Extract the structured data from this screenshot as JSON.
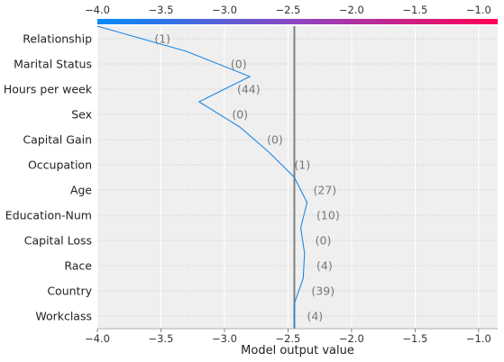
{
  "chart_data": {
    "type": "line",
    "xlabel": "Model output value",
    "xlim": [
      -4.0,
      -0.85
    ],
    "xticks": [
      -4.0,
      -3.5,
      -3.0,
      -2.5,
      -2.0,
      -1.5,
      -1.0
    ],
    "xtick_labels": [
      "−4.0",
      "−3.5",
      "−3.0",
      "−2.5",
      "−2.0",
      "−1.5",
      "−1.0"
    ],
    "grid": true,
    "base_value": -2.45,
    "colorbar": {
      "from_color": "#008bfb",
      "mid_color": "#8e44c2",
      "to_color": "#ff0051"
    },
    "line_color": "#1e88e5",
    "base_line_color": "#808080",
    "features": [
      "Relationship",
      "Marital Status",
      "Hours per week",
      "Sex",
      "Capital Gain",
      "Occupation",
      "Age",
      "Education-Num",
      "Capital Loss",
      "Race",
      "Country",
      "Workclass"
    ],
    "feature_values": [
      "(1)",
      "(0)",
      "(44)",
      "(0)",
      "(0)",
      "(1)",
      "(27)",
      "(10)",
      "(0)",
      "(4)",
      "(39)",
      "(4)"
    ],
    "path_x": [
      -4.0,
      -3.3,
      -2.8,
      -3.2,
      -2.88,
      -2.65,
      -2.45,
      -2.35,
      -2.4,
      -2.37,
      -2.38,
      -2.45,
      -2.45
    ]
  }
}
